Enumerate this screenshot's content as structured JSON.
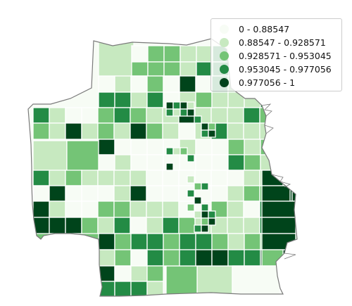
{
  "colors": {
    "background": "#ffffff",
    "city_outline": "#7a7a7a",
    "cell_edge": "#ffffff",
    "classes": [
      "#f7fcf5",
      "#c7e9c0",
      "#74c476",
      "#238b45",
      "#00441b"
    ]
  },
  "legend": {
    "placement": "top-right",
    "marker": "circle",
    "items": [
      {
        "label": "0 - 0.88547",
        "color": "#f7fcf5"
      },
      {
        "label": "0.88547 - 0.928571",
        "color": "#c7e9c0"
      },
      {
        "label": "0.928571 - 0.953045",
        "color": "#74c476"
      },
      {
        "label": "0.953045 - 0.977056",
        "color": "#238b45"
      },
      {
        "label": "0.977056 - 1",
        "color": "#00441b"
      }
    ]
  }
}
